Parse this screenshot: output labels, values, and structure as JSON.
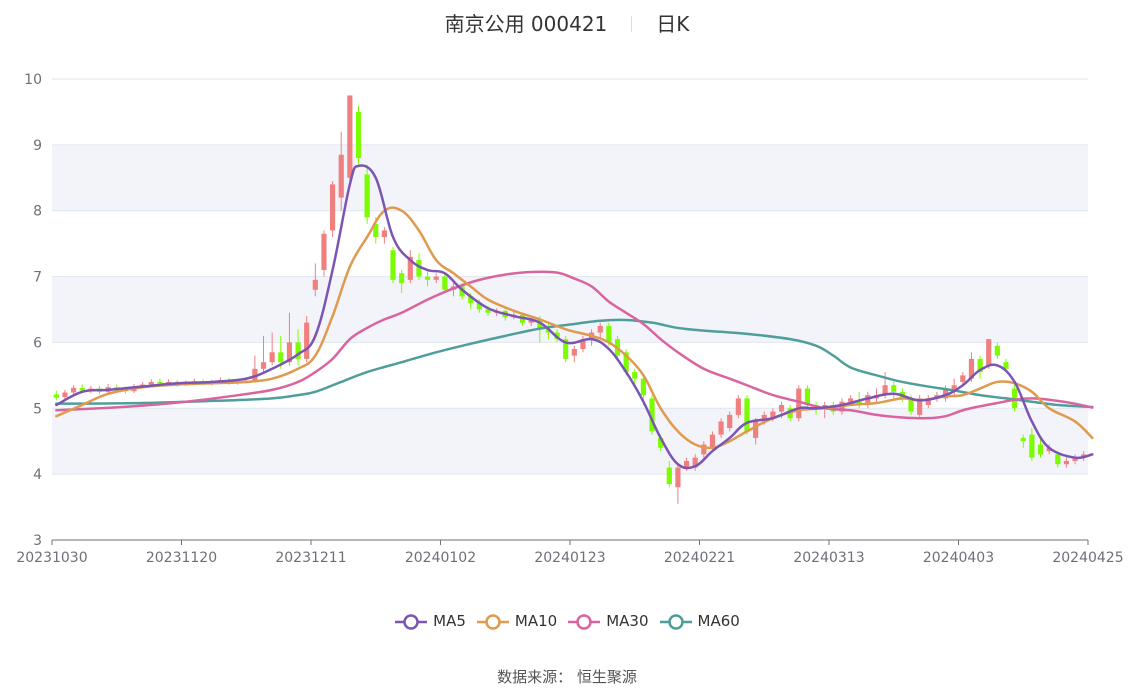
{
  "title": {
    "stock_name": "南京公用 000421",
    "period": "日K"
  },
  "source": "数据来源：  恒生聚源",
  "colors": {
    "up": "#f08080",
    "down": "#7cfc00",
    "MA5": "#7b55b3",
    "MA10": "#e09a4e",
    "MA30": "#d9649f",
    "MA60": "#4f9e9c",
    "band": "#f3f4f9",
    "grid": "#e0e6f1",
    "axis": "#6e7079"
  },
  "chart_data": {
    "type": "candlestick",
    "ylim": [
      3,
      10
    ],
    "yticks": [
      3,
      4,
      5,
      6,
      7,
      8,
      9,
      10
    ],
    "xtick_labels": [
      "20231030",
      "20231120",
      "20231211",
      "20240102",
      "20240123",
      "20240221",
      "20240313",
      "20240403",
      "20240425"
    ],
    "xtick_index": [
      0,
      15,
      30,
      45,
      60,
      75,
      90,
      105,
      120
    ],
    "candles": [
      [
        5.21,
        5.16,
        5.27,
        5.12
      ],
      [
        5.17,
        5.24,
        5.28,
        5.14
      ],
      [
        5.24,
        5.31,
        5.35,
        5.2
      ],
      [
        5.31,
        5.27,
        5.36,
        5.23
      ],
      [
        5.27,
        5.3,
        5.34,
        5.23
      ],
      [
        5.3,
        5.25,
        5.34,
        5.21
      ],
      [
        5.25,
        5.32,
        5.37,
        5.22
      ],
      [
        5.32,
        5.28,
        5.36,
        5.24
      ],
      [
        5.28,
        5.26,
        5.33,
        5.22
      ],
      [
        5.26,
        5.33,
        5.37,
        5.23
      ],
      [
        5.33,
        5.36,
        5.4,
        5.3
      ],
      [
        5.36,
        5.4,
        5.44,
        5.32
      ],
      [
        5.4,
        5.38,
        5.45,
        5.34
      ],
      [
        5.38,
        5.4,
        5.44,
        5.35
      ],
      [
        5.4,
        5.37,
        5.43,
        5.33
      ],
      [
        5.37,
        5.38,
        5.42,
        5.34
      ],
      [
        5.38,
        5.41,
        5.45,
        5.35
      ],
      [
        5.41,
        5.38,
        5.44,
        5.35
      ],
      [
        5.38,
        5.4,
        5.43,
        5.35
      ],
      [
        5.4,
        5.43,
        5.47,
        5.37
      ],
      [
        5.43,
        5.39,
        5.46,
        5.36
      ],
      [
        5.39,
        5.41,
        5.45,
        5.36
      ],
      [
        5.41,
        5.42,
        5.46,
        5.38
      ],
      [
        5.42,
        5.6,
        5.8,
        5.4
      ],
      [
        5.6,
        5.7,
        6.1,
        5.55
      ],
      [
        5.7,
        5.85,
        6.15,
        5.65
      ],
      [
        5.85,
        5.7,
        6.1,
        5.6
      ],
      [
        5.7,
        6.0,
        6.45,
        5.65
      ],
      [
        6.0,
        5.75,
        6.2,
        5.65
      ],
      [
        5.75,
        6.3,
        6.4,
        5.7
      ],
      [
        6.8,
        6.95,
        7.2,
        6.7
      ],
      [
        7.1,
        7.65,
        7.7,
        7.0
      ],
      [
        7.7,
        8.4,
        8.45,
        7.6
      ],
      [
        8.2,
        8.85,
        9.2,
        8.0
      ],
      [
        8.5,
        9.75,
        9.75,
        8.4
      ],
      [
        9.5,
        8.8,
        9.6,
        8.7
      ],
      [
        8.55,
        7.9,
        8.7,
        7.8
      ],
      [
        7.8,
        7.6,
        7.9,
        7.5
      ],
      [
        7.6,
        7.7,
        7.75,
        7.5
      ],
      [
        7.4,
        6.95,
        7.45,
        6.9
      ],
      [
        7.05,
        6.9,
        7.1,
        6.75
      ],
      [
        6.95,
        7.3,
        7.4,
        6.9
      ],
      [
        7.25,
        7.0,
        7.35,
        6.95
      ],
      [
        7.0,
        6.95,
        7.1,
        6.85
      ],
      [
        6.95,
        7.0,
        7.05,
        6.9
      ],
      [
        7.0,
        6.8,
        7.05,
        6.75
      ],
      [
        6.8,
        6.85,
        6.9,
        6.7
      ],
      [
        6.85,
        6.7,
        6.9,
        6.65
      ],
      [
        6.7,
        6.6,
        6.75,
        6.5
      ],
      [
        6.6,
        6.5,
        6.65,
        6.45
      ],
      [
        6.5,
        6.45,
        6.55,
        6.4
      ],
      [
        6.45,
        6.48,
        6.52,
        6.4
      ],
      [
        6.48,
        6.38,
        6.5,
        6.33
      ],
      [
        6.38,
        6.42,
        6.48,
        6.35
      ],
      [
        6.42,
        6.3,
        6.45,
        6.25
      ],
      [
        6.3,
        6.35,
        6.4,
        6.25
      ],
      [
        6.35,
        6.2,
        6.4,
        6.0
      ],
      [
        6.2,
        6.15,
        6.3,
        6.05
      ],
      [
        6.15,
        6.05,
        6.2,
        6.0
      ],
      [
        6.05,
        5.75,
        6.1,
        5.7
      ],
      [
        5.8,
        5.9,
        5.95,
        5.7
      ],
      [
        5.9,
        6.05,
        6.1,
        5.85
      ],
      [
        6.05,
        6.15,
        6.2,
        5.95
      ],
      [
        6.15,
        6.25,
        6.3,
        6.05
      ],
      [
        6.25,
        6.0,
        6.3,
        5.95
      ],
      [
        6.05,
        5.8,
        6.1,
        5.75
      ],
      [
        5.85,
        5.55,
        5.9,
        5.5
      ],
      [
        5.55,
        5.45,
        5.6,
        5.35
      ],
      [
        5.45,
        5.2,
        5.5,
        5.05
      ],
      [
        5.15,
        4.65,
        5.2,
        4.6
      ],
      [
        4.55,
        4.4,
        4.6,
        4.35
      ],
      [
        4.1,
        3.85,
        4.2,
        3.8
      ],
      [
        3.8,
        4.1,
        4.15,
        3.55
      ],
      [
        4.1,
        4.2,
        4.25,
        4.05
      ],
      [
        4.1,
        4.25,
        4.3,
        4.05
      ],
      [
        4.3,
        4.45,
        4.5,
        4.25
      ],
      [
        4.4,
        4.6,
        4.65,
        4.35
      ],
      [
        4.6,
        4.8,
        4.85,
        4.55
      ],
      [
        4.7,
        4.9,
        4.95,
        4.65
      ],
      [
        4.9,
        5.15,
        5.2,
        4.85
      ],
      [
        5.15,
        4.65,
        5.2,
        4.6
      ],
      [
        4.55,
        4.8,
        4.85,
        4.45
      ],
      [
        4.8,
        4.9,
        4.95,
        4.75
      ],
      [
        4.85,
        4.95,
        5.0,
        4.8
      ],
      [
        4.95,
        5.05,
        5.1,
        4.85
      ],
      [
        5.0,
        4.85,
        5.05,
        4.8
      ],
      [
        4.85,
        5.3,
        5.35,
        4.8
      ],
      [
        5.3,
        5.05,
        5.35,
        5.0
      ],
      [
        5.05,
        5.0,
        5.1,
        4.9
      ],
      [
        5.0,
        5.05,
        5.1,
        4.85
      ],
      [
        5.05,
        4.95,
        5.1,
        4.9
      ],
      [
        4.95,
        5.1,
        5.15,
        4.9
      ],
      [
        5.1,
        5.15,
        5.2,
        5.05
      ],
      [
        5.1,
        5.05,
        5.25,
        5.0
      ],
      [
        5.05,
        5.2,
        5.25,
        5.0
      ],
      [
        5.15,
        5.2,
        5.3,
        5.1
      ],
      [
        5.2,
        5.35,
        5.55,
        5.15
      ],
      [
        5.35,
        5.25,
        5.4,
        5.15
      ],
      [
        5.25,
        5.15,
        5.3,
        5.1
      ],
      [
        5.15,
        4.95,
        5.2,
        4.9
      ],
      [
        4.9,
        5.15,
        5.2,
        4.85
      ],
      [
        5.05,
        5.15,
        5.2,
        5.0
      ],
      [
        5.15,
        5.2,
        5.25,
        5.1
      ],
      [
        5.15,
        5.3,
        5.35,
        5.1
      ],
      [
        5.25,
        5.35,
        5.45,
        5.2
      ],
      [
        5.4,
        5.5,
        5.55,
        5.35
      ],
      [
        5.45,
        5.75,
        5.85,
        5.4
      ],
      [
        5.75,
        5.55,
        5.8,
        5.45
      ],
      [
        5.65,
        6.05,
        6.05,
        5.6
      ],
      [
        5.95,
        5.8,
        6.0,
        5.75
      ],
      [
        5.7,
        5.6,
        5.75,
        5.55
      ],
      [
        5.3,
        5.0,
        5.4,
        4.95
      ],
      [
        4.55,
        4.5,
        4.6,
        4.4
      ],
      [
        4.6,
        4.25,
        4.7,
        4.2
      ],
      [
        4.45,
        4.3,
        4.55,
        4.25
      ],
      [
        4.35,
        4.4,
        4.45,
        4.3
      ],
      [
        4.3,
        4.15,
        4.35,
        4.1
      ],
      [
        4.15,
        4.2,
        4.25,
        4.1
      ],
      [
        4.2,
        4.25,
        4.3,
        4.15
      ],
      [
        4.25,
        4.3,
        4.35,
        4.2
      ]
    ],
    "series": [
      {
        "name": "MA5",
        "points": [
          [
            0,
            5.05
          ],
          [
            3,
            5.25
          ],
          [
            6,
            5.28
          ],
          [
            10,
            5.33
          ],
          [
            14,
            5.38
          ],
          [
            18,
            5.4
          ],
          [
            22,
            5.45
          ],
          [
            25,
            5.6
          ],
          [
            28,
            5.82
          ],
          [
            30,
            6.1
          ],
          [
            32,
            7.1
          ],
          [
            34,
            8.4
          ],
          [
            35,
            8.68
          ],
          [
            37,
            8.5
          ],
          [
            39,
            7.6
          ],
          [
            41,
            7.25
          ],
          [
            43,
            7.1
          ],
          [
            45,
            7.05
          ],
          [
            47,
            6.8
          ],
          [
            50,
            6.52
          ],
          [
            53,
            6.4
          ],
          [
            56,
            6.3
          ],
          [
            59,
            6.0
          ],
          [
            62,
            6.05
          ],
          [
            64,
            5.9
          ],
          [
            66,
            5.55
          ],
          [
            68,
            5.1
          ],
          [
            70,
            4.55
          ],
          [
            72,
            4.15
          ],
          [
            74,
            4.12
          ],
          [
            76,
            4.35
          ],
          [
            78,
            4.55
          ],
          [
            80,
            4.78
          ],
          [
            83,
            4.85
          ],
          [
            86,
            5.0
          ],
          [
            88,
            5.0
          ],
          [
            91,
            5.05
          ],
          [
            94,
            5.15
          ],
          [
            97,
            5.22
          ],
          [
            100,
            5.12
          ],
          [
            103,
            5.2
          ],
          [
            105,
            5.35
          ],
          [
            107,
            5.58
          ],
          [
            109,
            5.65
          ],
          [
            111,
            5.4
          ],
          [
            113,
            4.8
          ],
          [
            115,
            4.4
          ],
          [
            118,
            4.25
          ],
          [
            120,
            4.3
          ]
        ]
      },
      {
        "name": "MA10",
        "points": [
          [
            0,
            4.88
          ],
          [
            3,
            5.05
          ],
          [
            6,
            5.22
          ],
          [
            10,
            5.32
          ],
          [
            14,
            5.36
          ],
          [
            18,
            5.38
          ],
          [
            22,
            5.4
          ],
          [
            25,
            5.45
          ],
          [
            28,
            5.6
          ],
          [
            30,
            5.8
          ],
          [
            32,
            6.4
          ],
          [
            34,
            7.15
          ],
          [
            36,
            7.6
          ],
          [
            38,
            8.0
          ],
          [
            40,
            8.0
          ],
          [
            42,
            7.7
          ],
          [
            44,
            7.25
          ],
          [
            46,
            7.05
          ],
          [
            48,
            6.85
          ],
          [
            50,
            6.65
          ],
          [
            53,
            6.48
          ],
          [
            56,
            6.35
          ],
          [
            59,
            6.2
          ],
          [
            62,
            6.1
          ],
          [
            64,
            6.0
          ],
          [
            66,
            5.8
          ],
          [
            68,
            5.5
          ],
          [
            70,
            5.0
          ],
          [
            72,
            4.65
          ],
          [
            74,
            4.45
          ],
          [
            76,
            4.4
          ],
          [
            78,
            4.5
          ],
          [
            80,
            4.65
          ],
          [
            83,
            4.85
          ],
          [
            86,
            4.97
          ],
          [
            89,
            5.0
          ],
          [
            92,
            5.05
          ],
          [
            95,
            5.08
          ],
          [
            98,
            5.15
          ],
          [
            100,
            5.12
          ],
          [
            103,
            5.18
          ],
          [
            105,
            5.2
          ],
          [
            107,
            5.3
          ],
          [
            109,
            5.4
          ],
          [
            111,
            5.38
          ],
          [
            113,
            5.25
          ],
          [
            115,
            5.0
          ],
          [
            118,
            4.8
          ],
          [
            120,
            4.55
          ]
        ]
      },
      {
        "name": "MA30",
        "points": [
          [
            0,
            4.97
          ],
          [
            5,
            5.0
          ],
          [
            10,
            5.04
          ],
          [
            15,
            5.1
          ],
          [
            20,
            5.18
          ],
          [
            25,
            5.28
          ],
          [
            28,
            5.4
          ],
          [
            30,
            5.55
          ],
          [
            32,
            5.75
          ],
          [
            34,
            6.05
          ],
          [
            36,
            6.22
          ],
          [
            38,
            6.35
          ],
          [
            40,
            6.45
          ],
          [
            43,
            6.65
          ],
          [
            46,
            6.82
          ],
          [
            49,
            6.95
          ],
          [
            52,
            7.03
          ],
          [
            55,
            7.07
          ],
          [
            58,
            7.06
          ],
          [
            60,
            6.97
          ],
          [
            62,
            6.85
          ],
          [
            64,
            6.62
          ],
          [
            66,
            6.45
          ],
          [
            68,
            6.28
          ],
          [
            70,
            6.05
          ],
          [
            72,
            5.85
          ],
          [
            75,
            5.6
          ],
          [
            78,
            5.45
          ],
          [
            80,
            5.35
          ],
          [
            83,
            5.2
          ],
          [
            86,
            5.1
          ],
          [
            89,
            5.0
          ],
          [
            92,
            4.97
          ],
          [
            95,
            4.9
          ],
          [
            98,
            4.86
          ],
          [
            101,
            4.85
          ],
          [
            103,
            4.88
          ],
          [
            105,
            4.97
          ],
          [
            107,
            5.03
          ],
          [
            109,
            5.08
          ],
          [
            111,
            5.13
          ],
          [
            113,
            5.15
          ],
          [
            115,
            5.13
          ],
          [
            118,
            5.07
          ],
          [
            120,
            5.01
          ]
        ]
      },
      {
        "name": "MA60",
        "points": [
          [
            0,
            5.07
          ],
          [
            10,
            5.08
          ],
          [
            20,
            5.12
          ],
          [
            25,
            5.15
          ],
          [
            28,
            5.2
          ],
          [
            30,
            5.25
          ],
          [
            33,
            5.4
          ],
          [
            36,
            5.55
          ],
          [
            40,
            5.7
          ],
          [
            44,
            5.85
          ],
          [
            48,
            5.98
          ],
          [
            52,
            6.1
          ],
          [
            56,
            6.21
          ],
          [
            60,
            6.28
          ],
          [
            63,
            6.33
          ],
          [
            66,
            6.34
          ],
          [
            69,
            6.3
          ],
          [
            72,
            6.22
          ],
          [
            75,
            6.18
          ],
          [
            80,
            6.13
          ],
          [
            85,
            6.05
          ],
          [
            88,
            5.95
          ],
          [
            90,
            5.8
          ],
          [
            92,
            5.62
          ],
          [
            95,
            5.5
          ],
          [
            98,
            5.4
          ],
          [
            101,
            5.33
          ],
          [
            104,
            5.27
          ],
          [
            107,
            5.2
          ],
          [
            110,
            5.15
          ],
          [
            113,
            5.1
          ],
          [
            116,
            5.05
          ],
          [
            120,
            5.02
          ]
        ]
      }
    ]
  }
}
